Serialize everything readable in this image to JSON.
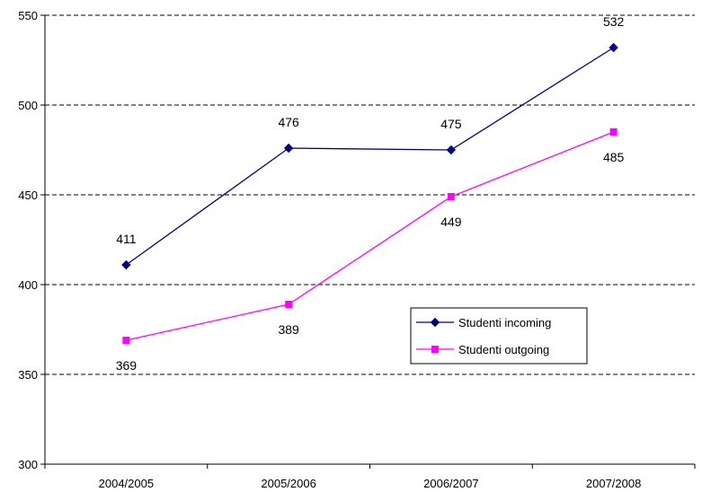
{
  "chart_data": {
    "type": "line",
    "categories": [
      "2004/2005",
      "2005/2006",
      "2006/2007",
      "2007/2008"
    ],
    "ylim": [
      300,
      550
    ],
    "yticks": [
      300,
      350,
      400,
      450,
      500,
      550
    ],
    "grid": "horizontal dashed",
    "legend_position": "center-right",
    "series": [
      {
        "name": "Studenti incoming",
        "values": [
          411,
          476,
          475,
          532
        ],
        "color": "#000080",
        "marker": "diamond",
        "label_position": "above"
      },
      {
        "name": "Studenti outgoing",
        "values": [
          369,
          389,
          449,
          485
        ],
        "color": "#ff00ff",
        "marker": "square",
        "label_position": "below"
      }
    ]
  }
}
